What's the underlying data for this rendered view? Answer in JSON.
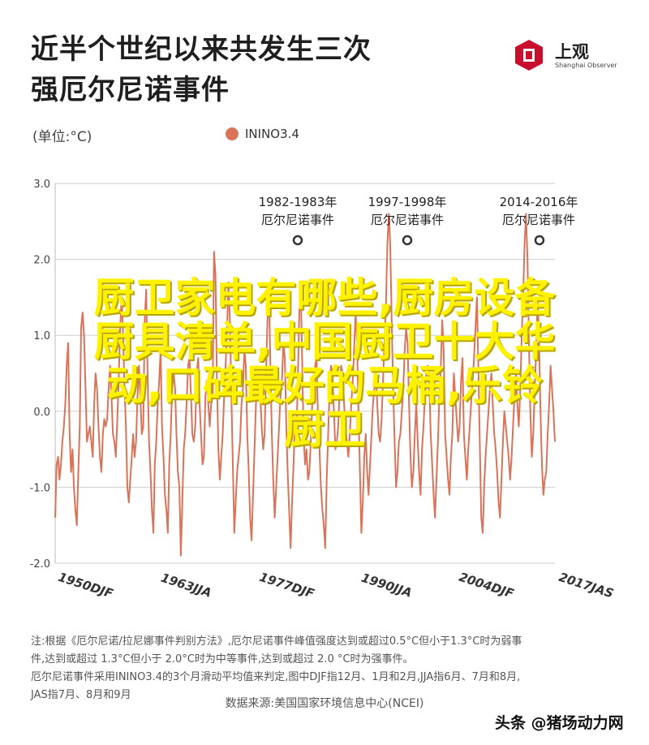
{
  "title_lines": [
    "近半个世纪以来共发生三次",
    "强厄尔尼诺事件"
  ],
  "logo": {
    "name": "上观",
    "sub": "Shanghai Observer"
  },
  "unit_label": "(单位:°C)",
  "overlay_lines": [
    "厨卫家电有哪些,厨房设备",
    "厨具清单,中国厨卫十大华",
    "动,口碑最好的马桶,乐铃",
    "厨卫"
  ],
  "note_lines": [
    "注:根据《厄尔尼诺/拉尼娜事件判别方法》,厄尔尼诺事件峰值强度达到或超过0.5°C但小于1.3°C时为弱事",
    "件,达到或超过 1.3°C但小于 2.0°C时为中等事件,达到或超过 2.0 °C时为强事件。",
    "厄尔尼诺事件采用ININO3.4的3个月滑动平均值来判定,图中DJF指12月、1月和2月,JJA指6月、7月和8月,",
    "JAS指7月、8月和9月"
  ],
  "source": "数据来源:美国国家环境信息中心(NCEI)",
  "watermark": "头条 @猪场动力网",
  "colors": {
    "line": "#d9745a",
    "grid": "#cfcfcf",
    "overlay": "#fff200"
  },
  "chart_data": {
    "type": "line",
    "series": [
      {
        "name": "ININO3.4",
        "values": [
          -1.4,
          -0.7,
          -0.6,
          -0.9,
          -0.7,
          -0.4,
          -0.2,
          0.1,
          0.6,
          0.9,
          -0.3,
          -0.8,
          -0.5,
          -1.0,
          -1.3,
          -1.5,
          -0.8,
          -0.2,
          1.1,
          1.3,
          1.0,
          0.3,
          -0.4,
          -0.3,
          -0.2,
          -0.4,
          -0.6,
          0.1,
          0.5,
          0.3,
          -0.2,
          -0.6,
          -0.8,
          -0.3,
          -0.1,
          -0.2,
          -0.1,
          0.3,
          0.6,
          0.2,
          -0.3,
          -0.4,
          -0.6,
          -0.1,
          0.4,
          1.1,
          1.5,
          1.0,
          0.3,
          -0.2,
          -1.0,
          -1.2,
          -0.9,
          -0.6,
          -0.3,
          -0.6,
          -0.4,
          0.2,
          0.6,
          0.2,
          -0.3,
          -0.2,
          1.2,
          1.6,
          0.5,
          -0.4,
          -0.8,
          -1.3,
          -1.6,
          -0.7,
          -0.4,
          0.1,
          0.4,
          0.8,
          -0.2,
          -0.6,
          -1.1,
          -1.3,
          -1.6,
          -0.7,
          -0.3,
          0.3,
          0.5,
          0.3,
          -0.3,
          -0.8,
          -1.0,
          -1.9,
          -1.2,
          -0.5,
          -0.3,
          0.1,
          0.6,
          0.7,
          0.2,
          -0.3,
          -0.4,
          -0.2,
          0.5,
          0.7,
          0.1,
          -0.3,
          -0.7,
          -0.6,
          0.2,
          0.4,
          0.1,
          -0.2,
          0.1,
          0.2,
          2.1,
          1.8,
          0.4,
          -0.5,
          -0.9,
          -0.6,
          -0.3,
          0.2,
          0.6,
          1.1,
          1.7,
          1.2,
          0.2,
          -0.7,
          -1.6,
          -1.2,
          -0.8,
          -0.6,
          -0.4,
          0.1,
          0.3,
          0.8,
          0.6,
          -0.3,
          -0.8,
          -1.4,
          -1.7,
          -1.1,
          -0.5,
          0.1,
          0.4,
          0.3,
          0.2,
          -0.2,
          -0.5,
          -0.3,
          0.5,
          1.2,
          1.6,
          0.6,
          -0.3,
          -0.9,
          -1.4,
          -1.0,
          -0.6,
          -0.2,
          0.2,
          0.4,
          0.9,
          0.7,
          -0.2,
          -0.8,
          -1.3,
          -1.8,
          -1.2,
          -0.7,
          -0.1,
          -0.3,
          0.4,
          1.3,
          1.6,
          0.7,
          -0.3,
          -0.7,
          -0.5,
          -0.9,
          -0.8,
          -0.4,
          0.1,
          0.3,
          0.6,
          0.7,
          -0.1,
          -0.5,
          -1.0,
          -1.3,
          -1.5,
          -1.8,
          -0.9,
          -0.3,
          0.3,
          0.6,
          0.5,
          0.0,
          -0.5,
          -0.4,
          -0.2,
          0.3,
          0.6,
          0.5,
          0.1,
          -0.2,
          -0.4,
          -0.6,
          -0.3,
          0.1,
          0.4,
          0.8,
          1.3,
          0.9,
          0.0,
          -0.8,
          -1.6,
          -1.2,
          -0.6,
          -0.3,
          -0.8,
          -1.1,
          -0.7,
          -0.3,
          0.1,
          0.3,
          0.5,
          0.1,
          -0.3,
          -0.4,
          -0.1,
          0.4,
          0.9,
          1.4,
          2.2,
          2.6,
          2.2,
          1.2,
          0.3,
          -0.4,
          -1.0,
          -0.8,
          -0.4,
          -0.3,
          0.0,
          0.3,
          0.8,
          1.1,
          0.9,
          0.1,
          -0.6,
          -1.0,
          -0.8,
          -0.3,
          0.1,
          -0.4,
          -0.8,
          -1.1,
          -0.5,
          -0.2,
          0.2,
          0.5,
          0.6,
          0.4,
          -0.3,
          -0.7,
          -1.1,
          -1.4,
          -0.9,
          -0.4,
          0.2,
          0.6,
          1.2,
          0.8,
          -0.3,
          -0.6,
          -0.9,
          -1.1,
          -0.6,
          -0.3,
          0.5,
          0.2,
          -0.1,
          -0.4,
          -0.2,
          0.4,
          0.7,
          -0.3,
          -0.6,
          -0.9,
          -0.5,
          -0.2,
          0.1,
          0.4,
          0.7,
          1.1,
          1.5,
          0.6,
          -0.4,
          -1.4,
          -1.6,
          -1.0,
          -0.6,
          -0.3,
          0.0,
          0.3,
          0.5,
          0.1,
          -0.3,
          -0.5,
          -0.8,
          -1.2,
          -1.4,
          -0.9,
          -0.4,
          0.0,
          -0.2,
          -0.4,
          -0.6,
          -0.9,
          -0.6,
          -0.2,
          0.2,
          0.5,
          0.1,
          -0.2,
          0.3,
          1.0,
          1.5,
          2.2,
          2.6,
          2.0,
          0.9,
          0.0,
          -0.6,
          -0.3,
          0.3,
          0.8,
          1.5,
          1.0,
          0.0,
          -0.7,
          -1.1,
          -0.9,
          -0.8,
          -0.3,
          0.1,
          0.6,
          0.3,
          0.0,
          -0.4
        ]
      }
    ],
    "x_tick_labels": [
      "1950DJF",
      "1963JJA",
      "1977DJF",
      "1990JJA",
      "2004DJF",
      "2017JAS"
    ],
    "y_ticks": [
      -2.0,
      -1.0,
      0.0,
      1.0,
      2.0,
      3.0
    ],
    "y_tick_labels": [
      "-2.0",
      "-1.0",
      "0.0",
      "1.0",
      "2.0",
      "3.0"
    ],
    "ylim": [
      -2.0,
      3.0
    ],
    "annotations": [
      {
        "lines": [
          "1982-1983年",
          "厄尔尼诺事件"
        ],
        "value": 2.1
      },
      {
        "lines": [
          "1997-1998年",
          "厄尔尼诺事件"
        ],
        "value": 2.3
      },
      {
        "lines": [
          "2014-2016年",
          "厄尔尼诺事件"
        ],
        "value": 2.3
      }
    ],
    "legend": {
      "position": "top"
    },
    "grid": "horizontal"
  }
}
